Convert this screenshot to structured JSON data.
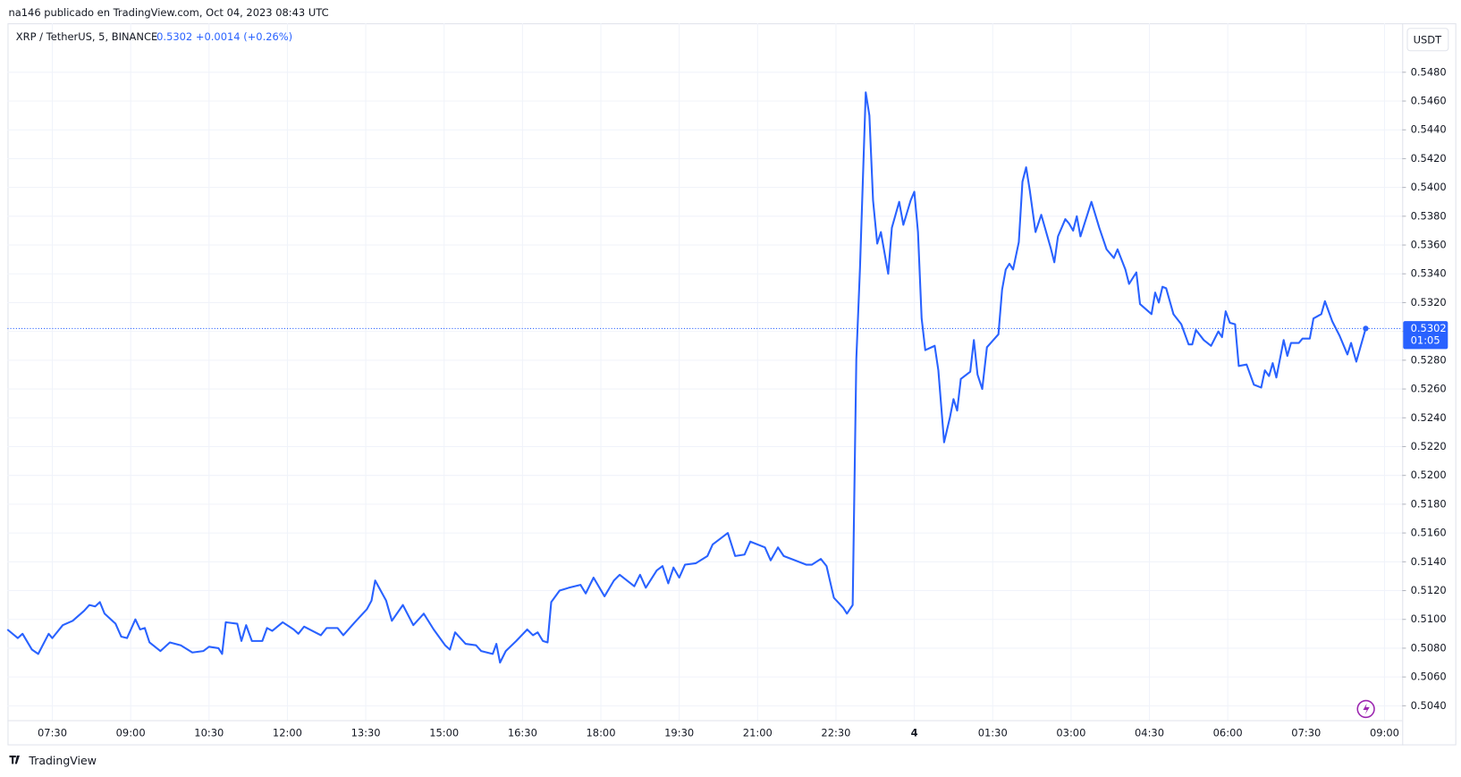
{
  "header": {
    "published": "na146 publicado en TradingView.com, Oct 04, 2023 08:43 UTC",
    "symbol": "XRP / TetherUS, 5, BINANCE",
    "price": "0.5302",
    "change": "+0.0014 (+0.26%)",
    "currency": "USDT",
    "countdown": "01:05",
    "brand": "TradingView"
  },
  "chart_data": {
    "type": "line",
    "color": "#2962ff",
    "grid": true,
    "x": [
      6.64,
      6.84,
      6.93,
      7.11,
      7.23,
      7.43,
      7.5,
      7.7,
      7.89,
      8.11,
      8.21,
      8.32,
      8.41,
      8.5,
      8.71,
      8.82,
      8.93,
      9.09,
      9.18,
      9.27,
      9.36,
      9.57,
      9.75,
      9.96,
      10.18,
      10.39,
      10.5,
      10.68,
      10.75,
      10.82,
      11.04,
      11.12,
      11.21,
      11.32,
      11.52,
      11.61,
      11.71,
      11.91,
      12.12,
      12.21,
      12.32,
      12.64,
      12.75,
      12.96,
      13.07,
      13.29,
      13.52,
      13.61,
      13.68,
      13.89,
      14.0,
      14.21,
      14.41,
      14.61,
      14.8,
      15.02,
      15.11,
      15.21,
      15.41,
      15.61,
      15.71,
      15.93,
      16.0,
      16.07,
      16.18,
      16.38,
      16.59,
      16.7,
      16.79,
      16.89,
      16.98,
      17.05,
      17.21,
      17.39,
      17.61,
      17.71,
      17.86,
      18.07,
      18.25,
      18.36,
      18.64,
      18.75,
      18.86,
      19.07,
      19.18,
      19.29,
      19.39,
      19.5,
      19.61,
      19.82,
      20.04,
      20.14,
      20.43,
      20.57,
      20.75,
      20.86,
      21.14,
      21.25,
      21.39,
      21.5,
      21.93,
      22.04,
      22.21,
      22.32,
      22.46,
      22.64,
      22.71,
      22.82,
      22.89,
      22.96,
      23.07,
      23.14,
      23.21,
      23.29,
      23.36,
      23.5,
      23.57,
      23.71,
      23.79,
      23.93,
      24.0,
      24.07,
      24.14,
      24.21,
      24.39,
      24.46,
      24.57,
      24.68,
      24.75,
      24.82,
      24.89,
      25.07,
      25.14,
      25.21,
      25.3,
      25.39,
      25.61,
      25.68,
      25.75,
      25.82,
      25.89,
      26.0,
      26.07,
      26.14,
      26.21,
      26.32,
      26.43,
      26.61,
      26.68,
      26.75,
      26.89,
      26.96,
      27.04,
      27.11,
      27.18,
      27.32,
      27.39,
      27.54,
      27.68,
      27.82,
      27.89,
      28.04,
      28.11,
      28.25,
      28.32,
      28.54,
      28.61,
      28.68,
      28.75,
      28.82,
      28.96,
      29.11,
      29.25,
      29.32,
      29.39,
      29.54,
      29.68,
      29.82,
      29.89,
      29.96,
      30.04,
      30.14,
      30.21,
      30.36,
      30.5,
      30.64,
      30.71,
      30.79,
      30.86,
      30.93,
      31.07,
      31.14,
      31.21,
      31.36,
      31.43,
      31.57,
      31.64,
      31.79,
      31.86,
      32.0,
      32.14,
      32.29,
      32.36,
      32.46,
      32.64
    ],
    "values": [
      0.5093,
      0.5087,
      0.509,
      0.5079,
      0.5076,
      0.509,
      0.5087,
      0.5096,
      0.5099,
      0.5106,
      0.511,
      0.5109,
      0.5112,
      0.5104,
      0.5097,
      0.5088,
      0.5087,
      0.51,
      0.5093,
      0.5094,
      0.5084,
      0.5078,
      0.5084,
      0.5082,
      0.5077,
      0.5078,
      0.5081,
      0.508,
      0.5076,
      0.5098,
      0.5097,
      0.5085,
      0.5096,
      0.5085,
      0.5085,
      0.5094,
      0.5092,
      0.5098,
      0.5093,
      0.509,
      0.5095,
      0.5089,
      0.5094,
      0.5094,
      0.5089,
      0.5098,
      0.5107,
      0.5113,
      0.5127,
      0.5113,
      0.5099,
      0.511,
      0.5096,
      0.5104,
      0.5093,
      0.5082,
      0.5079,
      0.5091,
      0.5083,
      0.5082,
      0.5078,
      0.5076,
      0.5083,
      0.507,
      0.5078,
      0.5085,
      0.5093,
      0.5089,
      0.5091,
      0.5085,
      0.5084,
      0.5112,
      0.512,
      0.5122,
      0.5124,
      0.5118,
      0.5129,
      0.5116,
      0.5127,
      0.5131,
      0.5123,
      0.5131,
      0.5122,
      0.5134,
      0.5137,
      0.5125,
      0.5136,
      0.5129,
      0.5138,
      0.5139,
      0.5144,
      0.5152,
      0.516,
      0.5144,
      0.5145,
      0.5154,
      0.515,
      0.5141,
      0.515,
      0.5144,
      0.5138,
      0.5138,
      0.5142,
      0.5137,
      0.5115,
      0.5108,
      0.5104,
      0.511,
      0.5281,
      0.5344,
      0.5466,
      0.545,
      0.5391,
      0.5361,
      0.5369,
      0.534,
      0.5372,
      0.539,
      0.5374,
      0.5391,
      0.5397,
      0.5369,
      0.5309,
      0.5287,
      0.529,
      0.5273,
      0.5223,
      0.524,
      0.5253,
      0.5245,
      0.5267,
      0.5272,
      0.5294,
      0.527,
      0.526,
      0.5289,
      0.5298,
      0.5329,
      0.5343,
      0.5347,
      0.5343,
      0.5362,
      0.5404,
      0.5414,
      0.5398,
      0.5369,
      0.5381,
      0.5358,
      0.5348,
      0.5366,
      0.5378,
      0.5375,
      0.537,
      0.538,
      0.5366,
      0.5382,
      0.539,
      0.5372,
      0.5357,
      0.5351,
      0.5357,
      0.5343,
      0.5333,
      0.5341,
      0.5319,
      0.5312,
      0.5327,
      0.532,
      0.5331,
      0.533,
      0.5312,
      0.5305,
      0.5291,
      0.5291,
      0.5301,
      0.5294,
      0.529,
      0.53,
      0.5296,
      0.5314,
      0.5306,
      0.5305,
      0.5276,
      0.5277,
      0.5263,
      0.5261,
      0.5273,
      0.5269,
      0.5278,
      0.5268,
      0.5294,
      0.5283,
      0.5292,
      0.5292,
      0.5295,
      0.5295,
      0.5309,
      0.5312,
      0.5321,
      0.5307,
      0.5297,
      0.5284,
      0.5292,
      0.5279,
      0.5302
    ],
    "xlim": [
      6.643,
      33.339
    ],
    "ylim": [
      0.503,
      0.5514
    ],
    "xticks": [
      {
        "value": 7.5,
        "label": "07:30"
      },
      {
        "value": 9,
        "label": "09:00"
      },
      {
        "value": 10.5,
        "label": "10:30"
      },
      {
        "value": 12,
        "label": "12:00"
      },
      {
        "value": 13.5,
        "label": "13:30"
      },
      {
        "value": 15,
        "label": "15:00"
      },
      {
        "value": 16.5,
        "label": "16:30"
      },
      {
        "value": 18,
        "label": "18:00"
      },
      {
        "value": 19.5,
        "label": "19:30"
      },
      {
        "value": 21,
        "label": "21:00"
      },
      {
        "value": 22.5,
        "label": "22:30"
      },
      {
        "value": 24,
        "label": "4"
      },
      {
        "value": 25.5,
        "label": "01:30"
      },
      {
        "value": 27,
        "label": "03:00"
      },
      {
        "value": 28.5,
        "label": "04:30"
      },
      {
        "value": 30,
        "label": "06:00"
      },
      {
        "value": 31.5,
        "label": "07:30"
      },
      {
        "value": 33,
        "label": "09:00"
      }
    ],
    "yticks": [
      {
        "value": 0.504,
        "label": "0.5040"
      },
      {
        "value": 0.506,
        "label": "0.5060"
      },
      {
        "value": 0.508,
        "label": "0.5080"
      },
      {
        "value": 0.51,
        "label": "0.5100"
      },
      {
        "value": 0.512,
        "label": "0.5120"
      },
      {
        "value": 0.514,
        "label": "0.5140"
      },
      {
        "value": 0.516,
        "label": "0.5160"
      },
      {
        "value": 0.518,
        "label": "0.5180"
      },
      {
        "value": 0.52,
        "label": "0.5200"
      },
      {
        "value": 0.522,
        "label": "0.5220"
      },
      {
        "value": 0.524,
        "label": "0.5240"
      },
      {
        "value": 0.526,
        "label": "0.5260"
      },
      {
        "value": 0.528,
        "label": "0.5280"
      },
      {
        "value": 0.53,
        "label": "0.5300"
      },
      {
        "value": 0.532,
        "label": "0.5320"
      },
      {
        "value": 0.534,
        "label": "0.5340"
      },
      {
        "value": 0.536,
        "label": "0.5360"
      },
      {
        "value": 0.538,
        "label": "0.5380"
      },
      {
        "value": 0.54,
        "label": "0.5400"
      },
      {
        "value": 0.542,
        "label": "0.5420"
      },
      {
        "value": 0.544,
        "label": "0.5440"
      },
      {
        "value": 0.546,
        "label": "0.5460"
      },
      {
        "value": 0.548,
        "label": "0.5480"
      }
    ]
  }
}
